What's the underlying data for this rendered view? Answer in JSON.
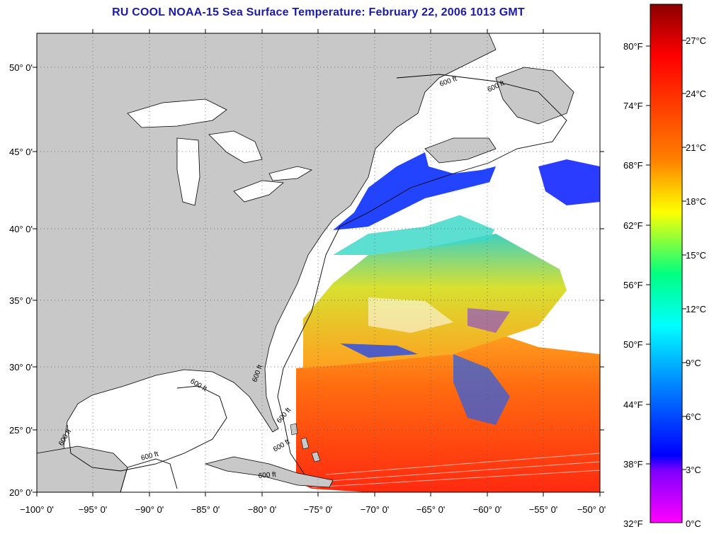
{
  "title": "RU COOL  NOAA-15  Sea Surface Temperature:  February 22, 2006 1013 GMT",
  "map": {
    "lon_range": [
      -100,
      -50
    ],
    "lat_range": [
      20,
      52
    ],
    "lat_ticks": [
      "20° 0'",
      "25° 0'",
      "30° 0'",
      "35° 0'",
      "40° 0'",
      "45° 0'",
      "50° 0'"
    ],
    "lon_ticks": [
      "−100° 0'",
      "−95° 0'",
      "−90° 0'",
      "−85° 0'",
      "−80° 0'",
      "−75° 0'",
      "−70° 0'",
      "−65° 0'",
      "−60° 0'",
      "−55° 0'",
      "−50° 0'"
    ],
    "contour_labels": [
      "600 ft",
      "600 ft",
      "600 ft",
      "600 ft",
      "600 ft",
      "600 ft",
      "600 ft",
      "600 ft",
      "600 ft"
    ],
    "land_color": "#c8c8c8",
    "background_color": "#ffffff",
    "grid": "dotted"
  },
  "colorbar": {
    "fahrenheit_labels": [
      "80°F",
      "74°F",
      "68°F",
      "62°F",
      "56°F",
      "50°F",
      "44°F",
      "38°F",
      "32°F"
    ],
    "celsius_labels": [
      "27°C",
      "24°C",
      "21°C",
      "18°C",
      "15°C",
      "12°C",
      "9°C",
      "6°C",
      "3°C",
      "0°C"
    ],
    "range_c": [
      0,
      28.5
    ],
    "colors_top_to_bottom": [
      "#8b0000",
      "#ff0000",
      "#ff8000",
      "#ffff00",
      "#00ff80",
      "#00ffff",
      "#0080ff",
      "#0000ff",
      "#8000ff",
      "#ff00ff"
    ]
  }
}
